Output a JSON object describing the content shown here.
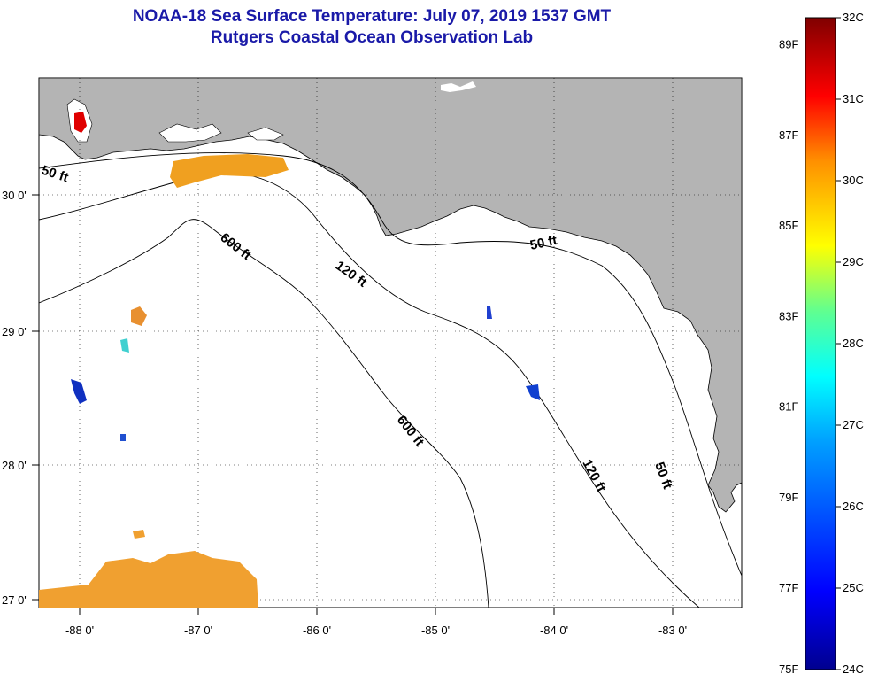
{
  "header": {
    "title": "NOAA-18 Sea Surface Temperature:  July 07, 2019 1537 GMT",
    "subtitle": "Rutgers Coastal Ocean Observation Lab"
  },
  "map": {
    "lon_labels": [
      "-88 0'",
      "-87 0'",
      "-86 0'",
      "-85 0'",
      "-84 0'",
      "-83 0'"
    ],
    "lat_labels": [
      "30 0'",
      "29 0'",
      "28 0'",
      "27 0'"
    ],
    "contour_labels": [
      "50 ft",
      "600 ft",
      "120 ft",
      "50 ft",
      "600 ft",
      "120 ft",
      "50 ft"
    ]
  },
  "colorbar": {
    "celsius": [
      "32C",
      "31C",
      "30C",
      "29C",
      "28C",
      "27C",
      "26C",
      "25C",
      "24C"
    ],
    "fahrenheit": [
      "89F",
      "87F",
      "85F",
      "83F",
      "81F",
      "79F",
      "77F",
      "75F"
    ],
    "colors": [
      "#00008f",
      "#0000ff",
      "#0080ff",
      "#00ffff",
      "#80ff80",
      "#ffff00",
      "#ff8000",
      "#ff0000",
      "#800000"
    ]
  }
}
